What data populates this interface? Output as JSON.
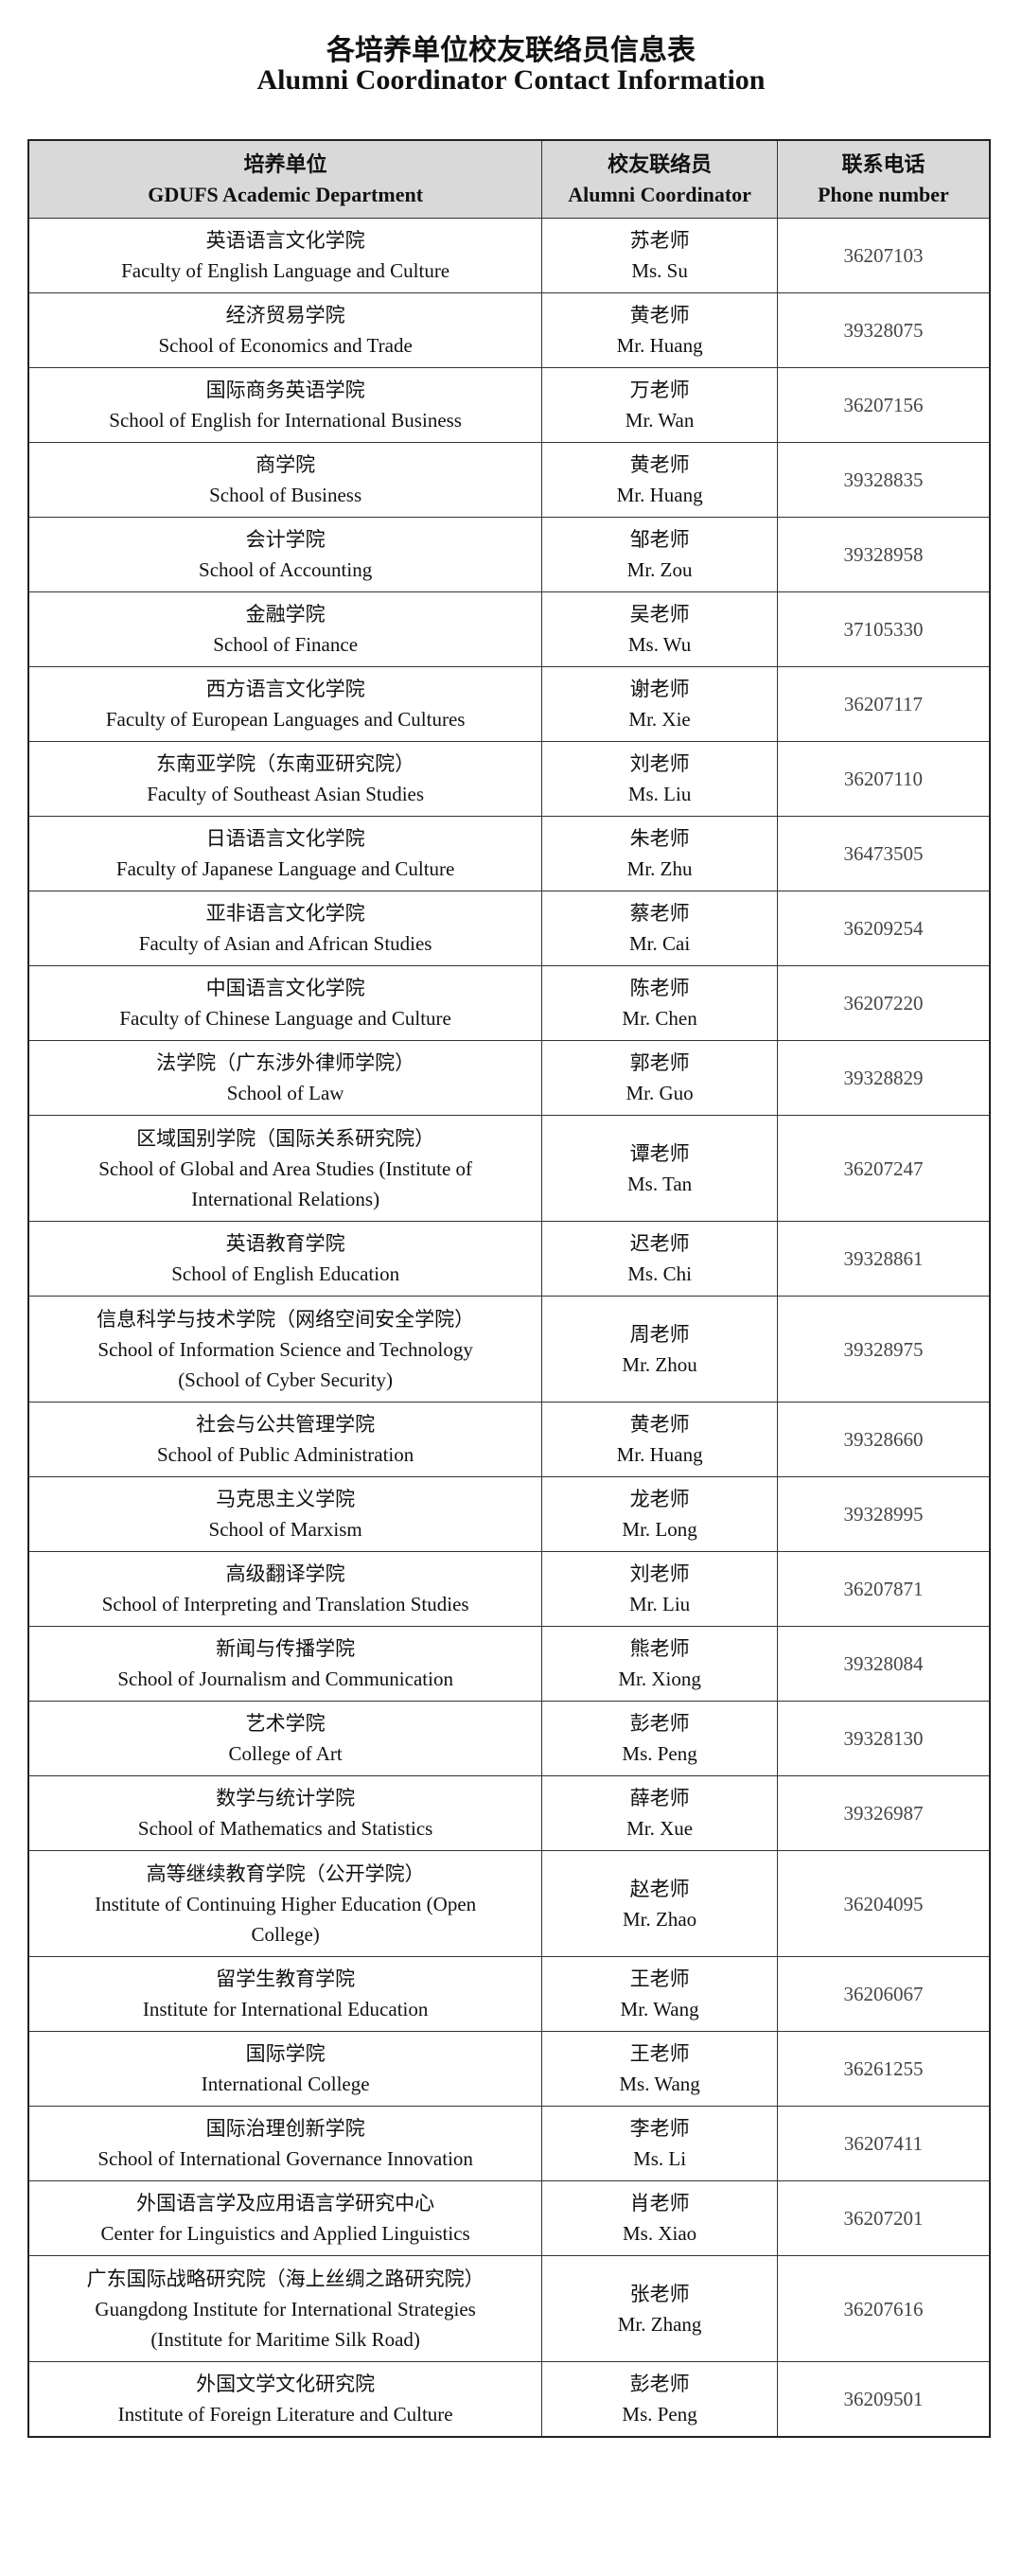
{
  "title": {
    "cn": "各培养单位校友联络员信息表",
    "en": "Alumni Coordinator Contact Information"
  },
  "headers": [
    {
      "cn": "培养单位",
      "en": "GDUFS Academic Department"
    },
    {
      "cn": "校友联络员",
      "en": "Alumni Coordinator"
    },
    {
      "cn": "联系电话",
      "en": "Phone number"
    }
  ],
  "rows": [
    {
      "dept_cn": "英语语言文化学院",
      "dept_en": "Faculty of English Language and Culture",
      "name_cn": "苏老师",
      "name_en": "Ms. Su",
      "phone": "36207103"
    },
    {
      "dept_cn": "经济贸易学院",
      "dept_en": "School of Economics and Trade",
      "name_cn": "黄老师",
      "name_en": "Mr. Huang",
      "phone": "39328075"
    },
    {
      "dept_cn": "国际商务英语学院",
      "dept_en": "School of English for International Business",
      "name_cn": "万老师",
      "name_en": "Mr. Wan",
      "phone": "36207156"
    },
    {
      "dept_cn": "商学院",
      "dept_en": "School of Business",
      "name_cn": "黄老师",
      "name_en": "Mr. Huang",
      "phone": "39328835"
    },
    {
      "dept_cn": "会计学院",
      "dept_en": "School of Accounting",
      "name_cn": "邹老师",
      "name_en": "Mr. Zou",
      "phone": "39328958"
    },
    {
      "dept_cn": "金融学院",
      "dept_en": "School of Finance",
      "name_cn": "吴老师",
      "name_en": "Ms. Wu",
      "phone": "37105330"
    },
    {
      "dept_cn": "西方语言文化学院",
      "dept_en": "Faculty of European Languages and Cultures",
      "name_cn": "谢老师",
      "name_en": "Mr. Xie",
      "phone": "36207117"
    },
    {
      "dept_cn": "东南亚学院（东南亚研究院）",
      "dept_en": "Faculty of Southeast Asian Studies",
      "name_cn": "刘老师",
      "name_en": "Ms. Liu",
      "phone": "36207110"
    },
    {
      "dept_cn": "日语语言文化学院",
      "dept_en": "Faculty of Japanese Language and Culture",
      "name_cn": "朱老师",
      "name_en": "Mr. Zhu",
      "phone": "36473505"
    },
    {
      "dept_cn": "亚非语言文化学院",
      "dept_en": "Faculty of Asian and African Studies",
      "name_cn": "蔡老师",
      "name_en": "Mr. Cai",
      "phone": "36209254"
    },
    {
      "dept_cn": "中国语言文化学院",
      "dept_en": "Faculty of Chinese Language and Culture",
      "name_cn": "陈老师",
      "name_en": "Mr. Chen",
      "phone": "36207220"
    },
    {
      "dept_cn": "法学院（广东涉外律师学院）",
      "dept_en": "School of Law",
      "name_cn": "郭老师",
      "name_en": "Mr. Guo",
      "phone": "39328829"
    },
    {
      "dept_cn": "区域国别学院（国际关系研究院）",
      "dept_en": "School of Global and Area Studies (Institute of",
      "dept_en2": "International Relations)",
      "name_cn": "谭老师",
      "name_en": "Ms. Tan",
      "phone": "36207247"
    },
    {
      "dept_cn": "英语教育学院",
      "dept_en": "School of English Education",
      "name_cn": "迟老师",
      "name_en": "Ms. Chi",
      "phone": "39328861"
    },
    {
      "dept_cn": "信息科学与技术学院（网络空间安全学院）",
      "dept_en": "School of Information Science and Technology",
      "dept_en2": "(School of Cyber Security)",
      "name_cn": "周老师",
      "name_en": "Mr. Zhou",
      "phone": "39328975"
    },
    {
      "dept_cn": "社会与公共管理学院",
      "dept_en": "School of Public Administration",
      "name_cn": "黄老师",
      "name_en": "Mr. Huang",
      "phone": "39328660"
    },
    {
      "dept_cn": "马克思主义学院",
      "dept_en": "School of Marxism",
      "name_cn": "龙老师",
      "name_en": "Mr. Long",
      "phone": "39328995"
    },
    {
      "dept_cn": "高级翻译学院",
      "dept_en": "School of Interpreting and Translation Studies",
      "name_cn": "刘老师",
      "name_en": "Mr. Liu",
      "phone": "36207871"
    },
    {
      "dept_cn": "新闻与传播学院",
      "dept_en": "School of Journalism and Communication",
      "name_cn": "熊老师",
      "name_en": "Mr. Xiong",
      "phone": "39328084"
    },
    {
      "dept_cn": "艺术学院",
      "dept_en": "College of Art",
      "name_cn": "彭老师",
      "name_en": "Ms. Peng",
      "phone": "39328130"
    },
    {
      "dept_cn": "数学与统计学院",
      "dept_en": "School of Mathematics and Statistics",
      "name_cn": "薛老师",
      "name_en": "Mr. Xue",
      "phone": "39326987"
    },
    {
      "dept_cn": "高等继续教育学院（公开学院）",
      "dept_en": "Institute of Continuing Higher Education (Open",
      "dept_en2": "College)",
      "name_cn": "赵老师",
      "name_en": "Mr. Zhao",
      "phone": "36204095"
    },
    {
      "dept_cn": "留学生教育学院",
      "dept_en": "Institute for International Education",
      "name_cn": "王老师",
      "name_en": "Mr. Wang",
      "phone": "36206067"
    },
    {
      "dept_cn": "国际学院",
      "dept_en": "International College",
      "name_cn": "王老师",
      "name_en": "Ms. Wang",
      "phone": "36261255"
    },
    {
      "dept_cn": "国际治理创新学院",
      "dept_en": "School of International Governance Innovation",
      "name_cn": "李老师",
      "name_en": "Ms. Li",
      "phone": "36207411"
    },
    {
      "dept_cn": "外国语言学及应用语言学研究中心",
      "dept_en": "Center for Linguistics and Applied Linguistics",
      "name_cn": "肖老师",
      "name_en": "Ms. Xiao",
      "phone": "36207201"
    },
    {
      "dept_cn": "广东国际战略研究院（海上丝绸之路研究院）",
      "dept_en": "Guangdong Institute for International Strategies",
      "dept_en2": "(Institute for Maritime Silk Road)",
      "name_cn": "张老师",
      "name_en": "Mr. Zhang",
      "phone": "36207616"
    },
    {
      "dept_cn": "外国文学文化研究院",
      "dept_en": "Institute of Foreign Literature and Culture",
      "name_cn": "彭老师",
      "name_en": "Ms. Peng",
      "phone": "36209501"
    }
  ]
}
